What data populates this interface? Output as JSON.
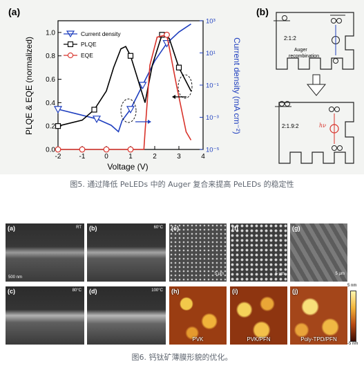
{
  "figure5": {
    "panel_a_label": "(a)",
    "panel_b_label": "(b)",
    "caption": "图5. 通过降低 PeLEDs 中的 Auger 复合来提高 PeLEDs 的稳定性",
    "diagram": {
      "top_ratio": "2:1:2",
      "top_process": "Auger",
      "top_process_2": "recombination",
      "bottom_ratio": "2:1.9:2",
      "bottom_label": "hν"
    }
  },
  "figure6": {
    "caption": "图6. 钙钛矿薄膜形貌的优化。",
    "panels": [
      {
        "label": "(a)",
        "temp": "RT",
        "scale": "500 nm"
      },
      {
        "label": "(b)",
        "temp": "60°C"
      },
      {
        "label": "(c)",
        "temp": "80°C"
      },
      {
        "label": "(d)",
        "temp": "100°C"
      },
      {
        "label": "(e)",
        "scale": "5 μm"
      },
      {
        "label": "(f)",
        "scale": "5 μm"
      },
      {
        "label": "(g)",
        "scale": "5 μm"
      },
      {
        "label": "(h)",
        "name": "PVK"
      },
      {
        "label": "(i)",
        "name": "PVK/PFN"
      },
      {
        "label": "(j)",
        "name": "Poly-TPD/PFN"
      }
    ],
    "colorbar": {
      "max": "5 nm",
      "min": "-5 nm"
    }
  },
  "chart_data": {
    "type": "line",
    "xlabel": "Voltage (V)",
    "ylabel_left": "PLQE & EQE (normalized)",
    "ylabel_right": "Current density (mA cm⁻²)",
    "xlim": [
      -2,
      4
    ],
    "xticks": [
      "-2",
      "-1",
      "0",
      "1",
      "2",
      "3",
      "4"
    ],
    "ylim_left": [
      0,
      1.1
    ],
    "yticks_left": [
      "0.0",
      "0.2",
      "0.4",
      "0.6",
      "0.8",
      "1.0"
    ],
    "ylim_right_log10": [
      -5,
      3
    ],
    "yticks_right": [
      "10⁻⁵",
      "10⁻³",
      "10⁻¹",
      "10¹",
      "10³"
    ],
    "legend_position": "top-left",
    "series": [
      {
        "name": "Current density",
        "color": "#1f3fbf",
        "marker": "triangle-down",
        "axis": "right",
        "log10_values": [
          {
            "x": -2.0,
            "y": -2.5
          },
          {
            "x": -1.2,
            "y": -2.8
          },
          {
            "x": -0.4,
            "y": -3.1
          },
          {
            "x": 0.2,
            "y": -3.5
          },
          {
            "x": 0.5,
            "y": -3.9
          },
          {
            "x": 0.65,
            "y": -3.2
          },
          {
            "x": 1.0,
            "y": -2.5
          },
          {
            "x": 1.5,
            "y": -1.0
          },
          {
            "x": 2.0,
            "y": 0.5
          },
          {
            "x": 2.5,
            "y": 1.6
          },
          {
            "x": 3.0,
            "y": 2.3
          },
          {
            "x": 3.5,
            "y": 2.8
          }
        ],
        "markers_x": [
          -2.0,
          -0.4,
          1.0,
          1.5,
          2.5
        ]
      },
      {
        "name": "PLQE",
        "color": "#000000",
        "marker": "square",
        "axis": "left",
        "values": [
          {
            "x": -2.0,
            "y": 0.2
          },
          {
            "x": -1.0,
            "y": 0.25
          },
          {
            "x": -0.5,
            "y": 0.34
          },
          {
            "x": 0.0,
            "y": 0.5
          },
          {
            "x": 0.3,
            "y": 0.7
          },
          {
            "x": 0.6,
            "y": 0.86
          },
          {
            "x": 0.8,
            "y": 0.88
          },
          {
            "x": 1.0,
            "y": 0.8
          },
          {
            "x": 1.3,
            "y": 0.6
          },
          {
            "x": 1.6,
            "y": 0.4
          },
          {
            "x": 1.9,
            "y": 0.72
          },
          {
            "x": 2.3,
            "y": 0.98
          },
          {
            "x": 2.6,
            "y": 0.95
          },
          {
            "x": 3.0,
            "y": 0.7
          },
          {
            "x": 3.5,
            "y": 0.5
          }
        ],
        "markers_x": [
          -2.0,
          -0.5,
          1.0,
          2.3,
          3.0
        ]
      },
      {
        "name": "EQE",
        "color": "#d8322a",
        "marker": "circle",
        "axis": "left",
        "values": [
          {
            "x": -2.0,
            "y": 0.0
          },
          {
            "x": -1.0,
            "y": 0.0
          },
          {
            "x": 0.0,
            "y": 0.0
          },
          {
            "x": 1.0,
            "y": 0.0
          },
          {
            "x": 1.55,
            "y": 0.0
          },
          {
            "x": 1.6,
            "y": 0.15
          },
          {
            "x": 1.8,
            "y": 0.72
          },
          {
            "x": 2.1,
            "y": 0.96
          },
          {
            "x": 2.5,
            "y": 0.98
          },
          {
            "x": 2.9,
            "y": 0.55
          },
          {
            "x": 3.3,
            "y": 0.15
          },
          {
            "x": 3.5,
            "y": 0.08
          }
        ],
        "markers_x": [
          -2.0,
          -1.0,
          0.0,
          1.0,
          2.5
        ]
      }
    ]
  }
}
